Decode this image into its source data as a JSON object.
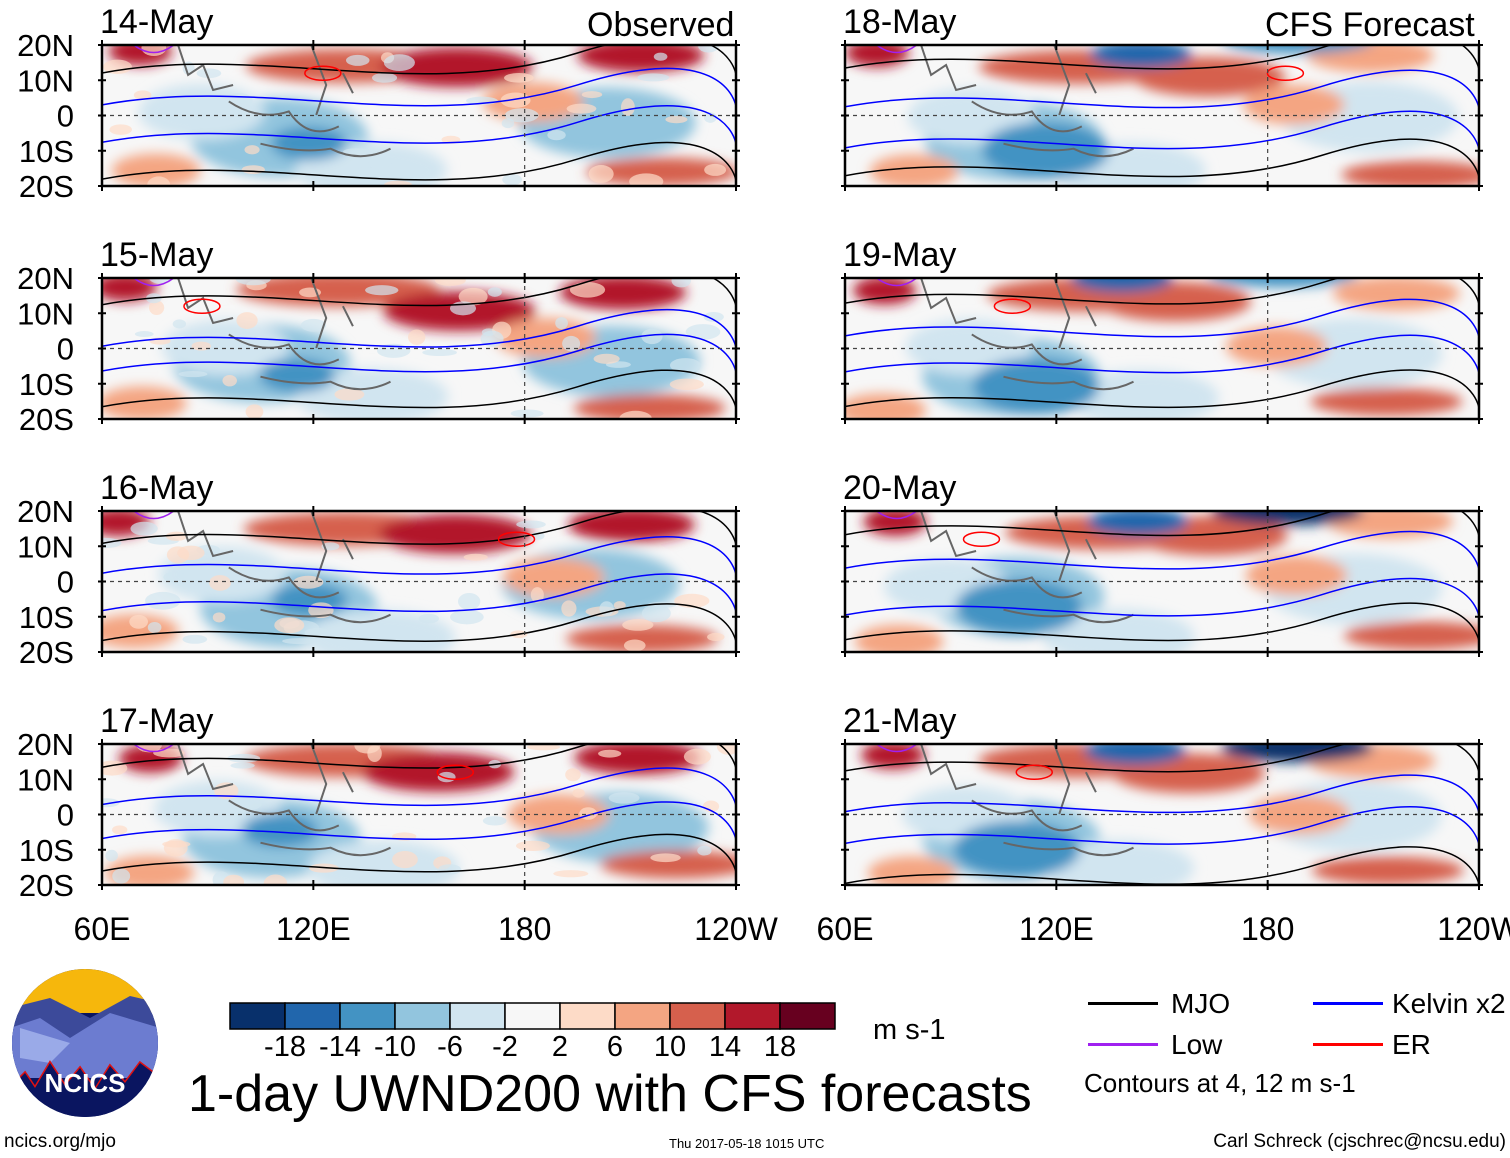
{
  "chart_data": {
    "type": "heatmap",
    "title": "1-day UWND200 with CFS forecasts",
    "units": "m s-1",
    "observed_label": "Observed",
    "forecast_label": "CFS Forecast",
    "observed_panels": [
      "14-May",
      "15-May",
      "16-May",
      "17-May"
    ],
    "forecast_panels": [
      "18-May",
      "19-May",
      "20-May",
      "21-May"
    ],
    "lat_ticks": [
      "20N",
      "10N",
      "0",
      "10S",
      "20S"
    ],
    "lon_ticks": [
      "60E",
      "120E",
      "180",
      "120W"
    ],
    "colorbar": {
      "ticks": [
        "-18",
        "-14",
        "-10",
        "-6",
        "-2",
        "2",
        "6",
        "10",
        "14",
        "18"
      ],
      "colors": [
        "#08306b",
        "#2166ac",
        "#4393c3",
        "#92c5de",
        "#d1e5f0",
        "#f7f7f7",
        "#fddbc7",
        "#f4a582",
        "#d6604d",
        "#b2182b",
        "#67001f"
      ]
    },
    "legend": [
      {
        "label": "MJO",
        "color": "#000000"
      },
      {
        "label": "Kelvin x2",
        "color": "#0000ff"
      },
      {
        "label": "Low",
        "color": "#a020f0"
      },
      {
        "label": "ER",
        "color": "#ff0000"
      }
    ],
    "contour_note": "Contours at 4, 12 m s-1"
  },
  "footer": {
    "url": "ncics.org/mjo",
    "timestamp": "Thu 2017-05-18 1015 UTC",
    "author": "Carl Schreck (cjschrec@ncsu.edu)"
  },
  "logo": {
    "text": "NCICS"
  }
}
